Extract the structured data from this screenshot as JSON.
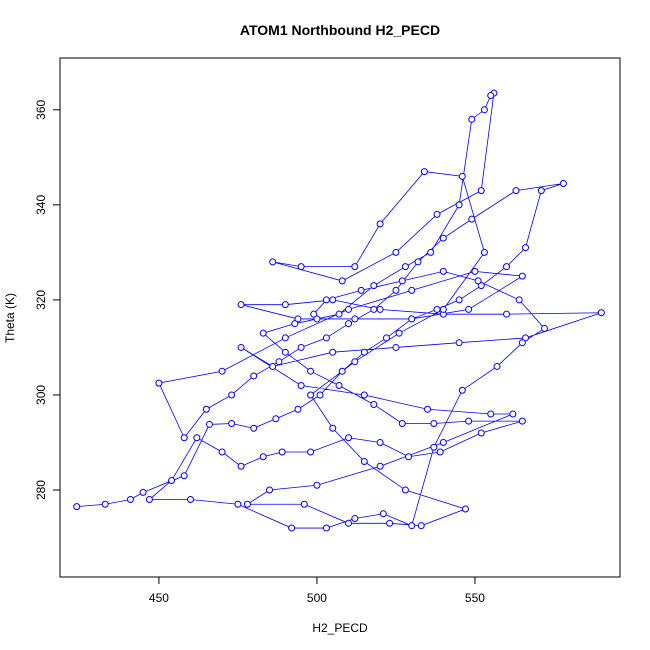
{
  "chart_data": {
    "type": "line",
    "markers": true,
    "title": "ATOM1 Northbound H2_PECD",
    "x_label": "H2_PECD",
    "y_label": "Theta (K)",
    "color": "#0000ff",
    "xlim": [
      418.7,
      595.9
    ],
    "ylim": [
      261.7,
      370.9
    ],
    "xticks": [
      450,
      500,
      550
    ],
    "yticks": [
      280,
      300,
      320,
      340,
      360
    ],
    "x": [
      424,
      433,
      441,
      445,
      458,
      466,
      473,
      480,
      487,
      494,
      501,
      508,
      515,
      522,
      530,
      538,
      545,
      552,
      560,
      566,
      571,
      578,
      563,
      549,
      540,
      532,
      525,
      518,
      510,
      503,
      495,
      488,
      480,
      473,
      465,
      458,
      450,
      470,
      490,
      510,
      530,
      550,
      565,
      548,
      530,
      512,
      494,
      476,
      490,
      505,
      520,
      540,
      560,
      590,
      566,
      545,
      525,
      505,
      486,
      476,
      495,
      515,
      535,
      555,
      562,
      540,
      520,
      500,
      485,
      478,
      496,
      510,
      523,
      533,
      547,
      528,
      515,
      505,
      498,
      512,
      526,
      540,
      553,
      546,
      534,
      520,
      512,
      495,
      486,
      508,
      525,
      538,
      552,
      556,
      555,
      553,
      549,
      545,
      536,
      528,
      518,
      507,
      500,
      493,
      483,
      490,
      498,
      507,
      518,
      527,
      537,
      548,
      565,
      552,
      539,
      529,
      520,
      510,
      498,
      489,
      483,
      476,
      470,
      462,
      454,
      447,
      460,
      475,
      492,
      503,
      512,
      521,
      530,
      537,
      546,
      557,
      565,
      572,
      564,
      551,
      540,
      527,
      514,
      503,
      499
    ],
    "values": [
      276.5,
      277,
      278,
      279.5,
      283,
      293.8,
      294,
      293,
      295,
      297,
      300,
      305,
      309,
      312,
      316,
      318,
      320,
      323,
      327,
      331,
      343,
      344.5,
      343,
      337,
      333,
      328,
      322,
      318,
      315,
      312,
      310,
      307,
      304,
      300,
      297,
      291,
      302.5,
      305,
      312,
      318,
      322,
      326,
      325,
      318,
      316,
      316,
      316,
      319,
      319,
      320,
      318,
      317,
      317,
      317.3,
      312,
      311,
      310,
      309,
      306,
      310,
      302,
      300,
      297,
      296,
      296,
      290,
      285,
      281,
      280,
      277,
      277,
      273,
      273,
      272.5,
      276,
      280,
      286,
      293,
      300,
      307,
      313,
      318,
      330,
      346,
      347,
      336,
      327,
      327,
      328,
      324,
      330,
      338,
      343,
      363.5,
      363,
      360,
      358,
      340,
      330,
      327,
      323,
      317,
      316,
      315,
      313,
      309,
      305,
      302,
      298,
      294,
      294,
      294.5,
      294.5,
      292,
      288,
      287,
      290,
      291,
      288,
      288,
      287,
      285,
      288,
      291,
      282,
      278,
      278,
      277,
      272,
      272,
      274,
      275,
      272.5,
      289,
      301,
      306,
      311,
      314,
      320,
      324,
      326,
      324,
      322,
      320,
      317
    ]
  }
}
